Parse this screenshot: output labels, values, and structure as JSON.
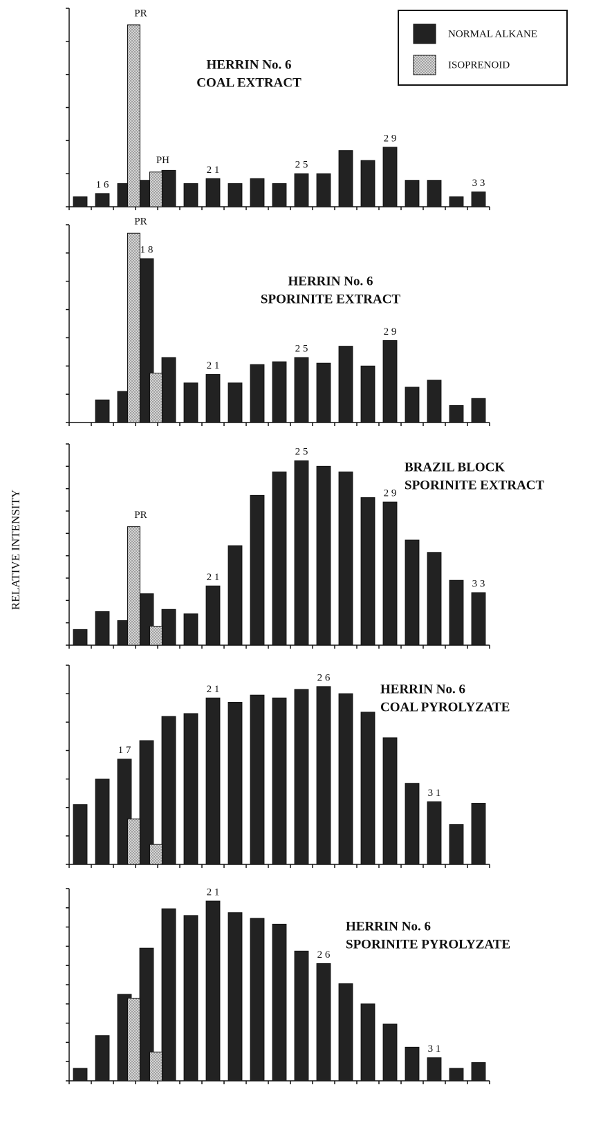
{
  "ylabel": "RELATIVE INTENSITY",
  "chart_data": [
    {
      "type": "bar",
      "title_lines": [
        "HERRIN No. 6",
        "COAL EXTRACT"
      ],
      "categories": [
        null,
        null,
        null,
        null,
        null,
        null,
        null,
        null,
        null,
        null,
        null,
        null,
        null,
        null,
        null,
        null,
        null,
        null,
        null
      ],
      "ylim": [
        0,
        6
      ],
      "yticks": [
        0,
        1,
        2,
        3,
        4,
        5,
        6
      ],
      "series": [
        {
          "name": "NORMAL ALKANE",
          "color": "#222222",
          "values": [
            0.3,
            0.4,
            0.7,
            0.8,
            1.1,
            0.7,
            0.85,
            0.7,
            0.85,
            0.7,
            1.0,
            1.0,
            1.7,
            1.4,
            1.8,
            0.8,
            0.8,
            0.3,
            0.45
          ],
          "labels": [
            null,
            "1 6",
            null,
            null,
            null,
            null,
            "2 1",
            null,
            null,
            null,
            "2 5",
            null,
            null,
            null,
            "2 9",
            null,
            null,
            null,
            "3 3"
          ]
        },
        {
          "name": "ISOPRENOID",
          "color": "#d4d4d4",
          "values": [
            null,
            null,
            5.5,
            1.05,
            null,
            null,
            null,
            null,
            null,
            null,
            null,
            null,
            null,
            null,
            null,
            null,
            null,
            null,
            null
          ],
          "labels": [
            null,
            null,
            "PR",
            "PH",
            null,
            null,
            null,
            null,
            null,
            null,
            null,
            null,
            null,
            null,
            null,
            null,
            null,
            null,
            null
          ]
        }
      ]
    },
    {
      "type": "bar",
      "title_lines": [
        "HERRIN No. 6",
        "SPORINITE EXTRACT"
      ],
      "categories": [
        null,
        null,
        null,
        null,
        null,
        null,
        null,
        null,
        null,
        null,
        null,
        null,
        null,
        null,
        null,
        null,
        null,
        null,
        null
      ],
      "ylim": [
        0,
        7
      ],
      "yticks": [
        0,
        1,
        2,
        3,
        4,
        5,
        6,
        7
      ],
      "series": [
        {
          "name": "NORMAL ALKANE",
          "color": "#222222",
          "values": [
            null,
            0.8,
            1.1,
            5.8,
            2.3,
            1.4,
            1.7,
            1.4,
            2.05,
            2.15,
            2.3,
            2.1,
            2.7,
            2.0,
            2.9,
            1.25,
            1.5,
            0.6,
            0.85
          ],
          "labels": [
            null,
            null,
            null,
            "1 8",
            null,
            null,
            "2 1",
            null,
            null,
            null,
            "2 5",
            null,
            null,
            null,
            "2 9",
            null,
            null,
            null,
            null
          ]
        },
        {
          "name": "ISOPRENOID",
          "color": "#d4d4d4",
          "values": [
            null,
            null,
            6.7,
            1.75,
            null,
            null,
            null,
            null,
            null,
            null,
            null,
            null,
            null,
            null,
            null,
            null,
            null,
            null,
            null
          ],
          "labels": [
            null,
            null,
            "PR",
            null,
            null,
            null,
            null,
            null,
            null,
            null,
            null,
            null,
            null,
            null,
            null,
            null,
            null,
            null,
            null
          ]
        }
      ]
    },
    {
      "type": "bar",
      "title_lines": [
        "BRAZIL BLOCK",
        "SPORINITE EXTRACT"
      ],
      "categories": [
        null,
        null,
        null,
        null,
        null,
        null,
        null,
        null,
        null,
        null,
        null,
        null,
        null,
        null,
        null,
        null,
        null,
        null,
        null
      ],
      "ylim": [
        0,
        9
      ],
      "yticks": [
        0,
        1,
        2,
        3,
        4,
        5,
        6,
        7,
        8,
        9
      ],
      "series": [
        {
          "name": "NORMAL ALKANE",
          "color": "#222222",
          "values": [
            0.7,
            1.5,
            1.1,
            2.3,
            1.6,
            1.4,
            2.65,
            4.45,
            6.7,
            7.75,
            8.25,
            8.0,
            7.75,
            6.6,
            6.4,
            4.7,
            4.15,
            2.9,
            2.35
          ],
          "labels": [
            null,
            null,
            null,
            null,
            null,
            null,
            "2 1",
            null,
            null,
            null,
            "2 5",
            null,
            null,
            null,
            "2 9",
            null,
            null,
            null,
            "3 3"
          ]
        },
        {
          "name": "ISOPRENOID",
          "color": "#d4d4d4",
          "values": [
            null,
            null,
            5.3,
            0.85,
            null,
            null,
            null,
            null,
            null,
            null,
            null,
            null,
            null,
            null,
            null,
            null,
            null,
            null,
            null
          ],
          "labels": [
            null,
            null,
            "PR",
            null,
            null,
            null,
            null,
            null,
            null,
            null,
            null,
            null,
            null,
            null,
            null,
            null,
            null,
            null,
            null
          ]
        }
      ]
    },
    {
      "type": "bar",
      "title_lines": [
        "HERRIN No. 6",
        "COAL PYROLYZATE"
      ],
      "categories": [
        null,
        null,
        null,
        null,
        null,
        null,
        null,
        null,
        null,
        null,
        null,
        null,
        null,
        null,
        null,
        null,
        null,
        null,
        null
      ],
      "ylim": [
        0,
        7
      ],
      "yticks": [
        0,
        1,
        2,
        3,
        4,
        5,
        6,
        7
      ],
      "series": [
        {
          "name": "NORMAL ALKANE",
          "color": "#222222",
          "values": [
            2.1,
            3.0,
            3.7,
            4.35,
            5.2,
            5.3,
            5.85,
            5.7,
            5.95,
            5.85,
            6.15,
            6.25,
            6.0,
            5.35,
            4.45,
            2.85,
            2.2,
            1.4,
            2.15
          ],
          "labels": [
            null,
            null,
            "1 7",
            null,
            null,
            null,
            "2 1",
            null,
            null,
            null,
            null,
            "2 6",
            null,
            null,
            null,
            null,
            "3 1",
            null,
            null
          ]
        },
        {
          "name": "ISOPRENOID",
          "color": "#d4d4d4",
          "values": [
            null,
            null,
            1.6,
            0.7,
            null,
            null,
            null,
            null,
            null,
            null,
            null,
            null,
            null,
            null,
            null,
            null,
            null,
            null,
            null
          ],
          "labels": [
            null,
            null,
            null,
            null,
            null,
            null,
            null,
            null,
            null,
            null,
            null,
            null,
            null,
            null,
            null,
            null,
            null,
            null,
            null
          ]
        }
      ]
    },
    {
      "type": "bar",
      "title_lines": [
        "HERRIN No. 6",
        "SPORINITE PYROLYZATE"
      ],
      "categories": [
        null,
        null,
        null,
        null,
        null,
        null,
        null,
        null,
        null,
        null,
        null,
        null,
        null,
        null,
        null,
        null,
        null,
        null,
        null
      ],
      "ylim": [
        0,
        10
      ],
      "yticks": [
        0,
        1,
        2,
        3,
        4,
        5,
        6,
        7,
        8,
        9,
        10
      ],
      "series": [
        {
          "name": "NORMAL ALKANE",
          "color": "#222222",
          "values": [
            0.65,
            2.35,
            4.5,
            6.9,
            8.95,
            8.6,
            9.35,
            8.75,
            8.45,
            8.15,
            6.75,
            6.1,
            5.05,
            4.0,
            2.95,
            1.75,
            1.2,
            0.65,
            0.95
          ],
          "labels": [
            null,
            null,
            null,
            null,
            null,
            null,
            "2 1",
            null,
            null,
            null,
            null,
            "2 6",
            null,
            null,
            null,
            null,
            "3 1",
            null,
            null
          ]
        },
        {
          "name": "ISOPRENOID",
          "color": "#d4d4d4",
          "values": [
            null,
            null,
            4.3,
            1.5,
            null,
            null,
            null,
            null,
            null,
            null,
            null,
            null,
            null,
            null,
            null,
            null,
            null,
            null,
            null
          ],
          "labels": [
            null,
            null,
            null,
            null,
            null,
            null,
            null,
            null,
            null,
            null,
            null,
            null,
            null,
            null,
            null,
            null,
            null,
            null,
            null
          ]
        }
      ]
    }
  ]
}
